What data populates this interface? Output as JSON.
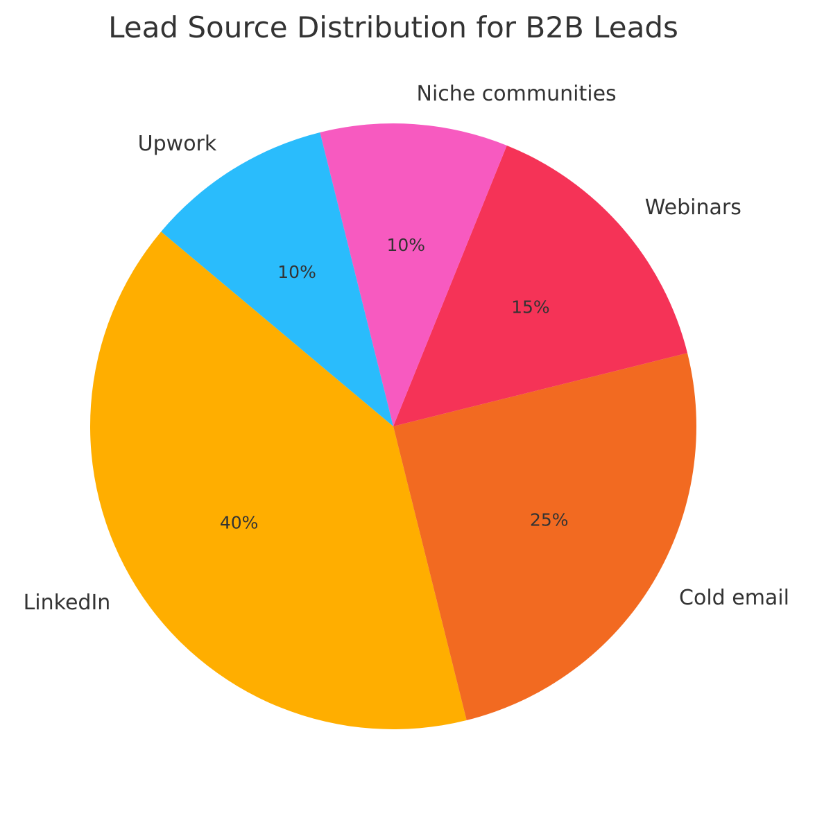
{
  "chart_data": {
    "type": "pie",
    "title": "Lead Source Distribution for B2B Leads",
    "categories": [
      "LinkedIn",
      "Cold email",
      "Webinars",
      "Niche communities",
      "Upwork"
    ],
    "values": [
      40,
      25,
      15,
      10,
      10
    ],
    "value_labels": [
      "40%",
      "25%",
      "15%",
      "10%",
      "10%"
    ],
    "colors": [
      "#FFAE00",
      "#F26A21",
      "#F53357",
      "#F75AC0",
      "#2ABCFC"
    ],
    "start_angle_deg": 140,
    "direction": "counterclockwise",
    "legend": "none"
  }
}
